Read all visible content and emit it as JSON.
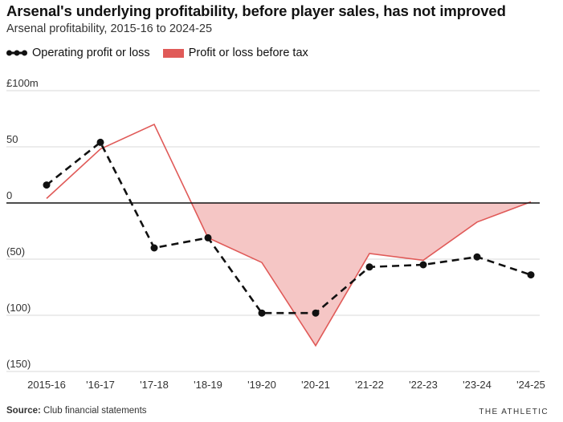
{
  "title": "Arsenal's underlying profitability, before player sales, has not improved",
  "subtitle": "Arsenal profitability, 2015-16 to 2024-25",
  "source_label": "Source:",
  "source_text": "Club financial statements",
  "brand": "THE ATHLETIC",
  "colors": {
    "operating": "#111111",
    "pbt_line": "#e05a58",
    "pbt_fill": "#f5c6c5",
    "grid": "#d9d9d9",
    "zero": "#111111"
  },
  "chart_data": {
    "type": "line",
    "categories": [
      "2015-16",
      "'16-17",
      "'17-18",
      "'18-19",
      "'19-20",
      "'20-21",
      "'21-22",
      "'22-23",
      "'23-24",
      "'24-25"
    ],
    "series": [
      {
        "name": "Operating profit or loss",
        "values": [
          16,
          54,
          -40,
          -31,
          -98,
          -98,
          -57,
          -55,
          -48,
          -64
        ]
      },
      {
        "name": "Profit or loss before tax",
        "values": [
          4,
          48,
          70,
          -31,
          -53,
          -127,
          -45,
          -51,
          -17,
          1
        ]
      }
    ],
    "y_ticks": [
      {
        "value": 100,
        "label": "£100m"
      },
      {
        "value": 50,
        "label": "50"
      },
      {
        "value": 0,
        "label": "0"
      },
      {
        "value": -50,
        "label": "(50)"
      },
      {
        "value": -100,
        "label": "(100)"
      },
      {
        "value": -150,
        "label": "(150)"
      }
    ],
    "ylim": [
      -150,
      100
    ],
    "grid": true,
    "legend_position": "top-left"
  }
}
